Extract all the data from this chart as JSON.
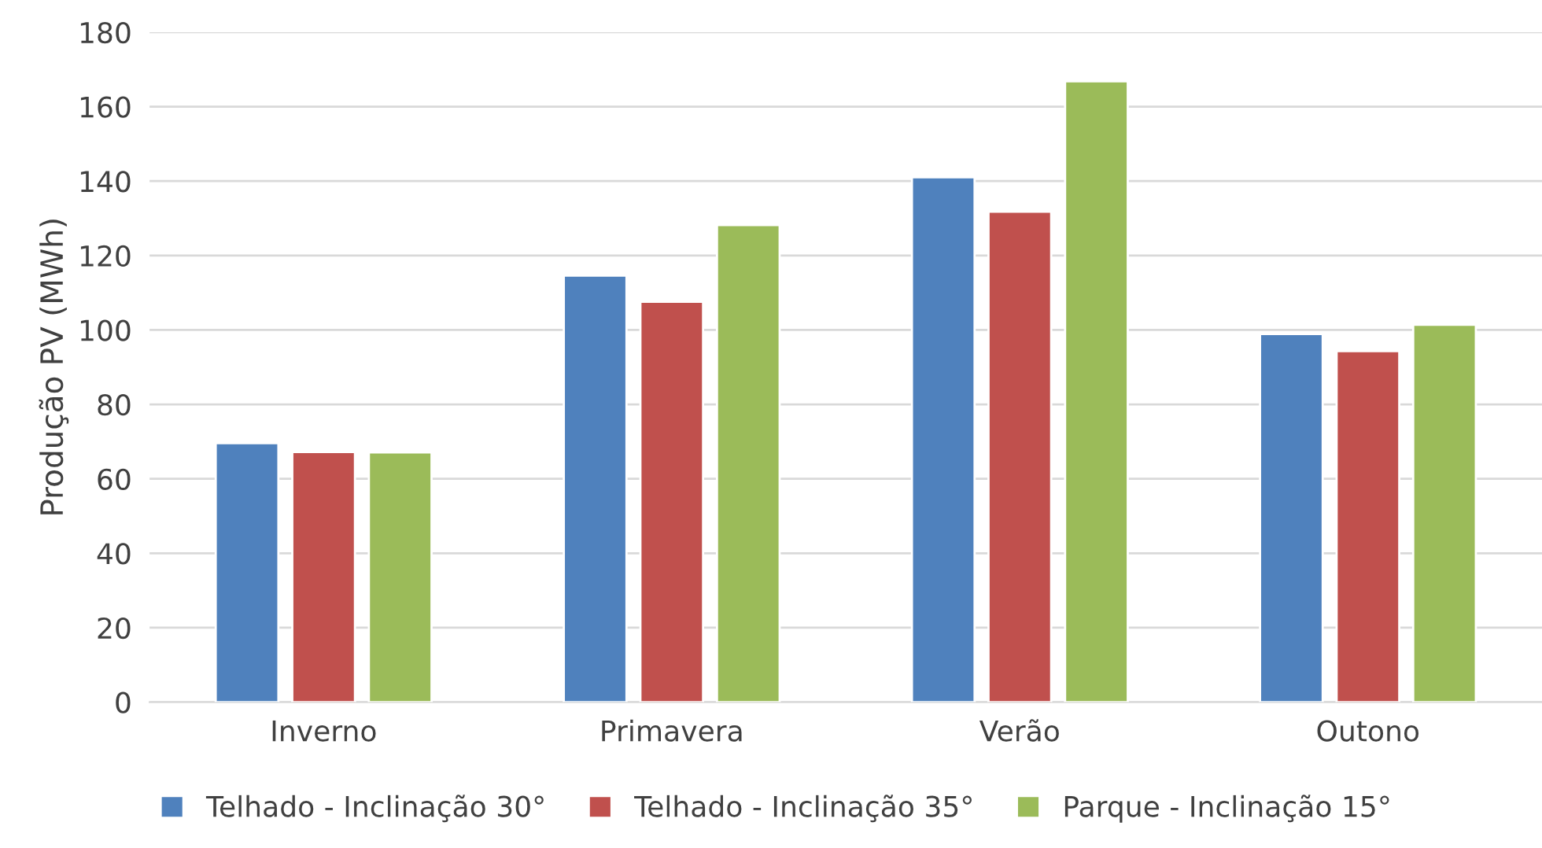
{
  "chart_data": {
    "type": "bar",
    "ylabel": "Produção PV (MWh)",
    "categories": [
      "Inverno",
      "Primavera",
      "Verão",
      "Outono"
    ],
    "series": [
      {
        "name": "Telhado - Inclinação 30°",
        "color": "#4f81bd",
        "values": [
          69.6,
          114.6,
          141,
          98.9
        ]
      },
      {
        "name": "Telhado - Inclinação 35°",
        "color": "#c0504d",
        "values": [
          67.2,
          107.6,
          131.8,
          94.3
        ]
      },
      {
        "name": "Parque - Inclinação 15°",
        "color": "#9bbb59",
        "values": [
          67.1,
          128.2,
          166.8,
          101.4
        ]
      }
    ],
    "ylim": [
      0,
      180
    ],
    "yticks": [
      0,
      20,
      40,
      60,
      80,
      100,
      120,
      140,
      160,
      180
    ],
    "grid": "y",
    "legend": "bottom"
  }
}
